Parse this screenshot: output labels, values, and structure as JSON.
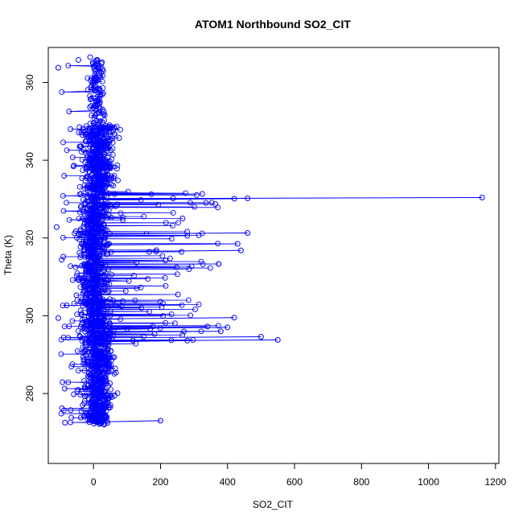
{
  "chart_data": {
    "type": "scatter",
    "title": "ATOM1 Northbound SO2_CIT",
    "xlabel": "SO2_CIT",
    "ylabel": "Theta (K)",
    "xlim": [
      -135,
      1210
    ],
    "ylim": [
      262,
      369
    ],
    "x_ticks": [
      0,
      200,
      400,
      600,
      800,
      1000,
      1200
    ],
    "y_ticks": [
      280,
      300,
      320,
      340,
      360
    ],
    "grid": false,
    "legend": "none",
    "series_color": "#0000ff",
    "marker": "open-circle",
    "connected": true,
    "highlight_points": [
      {
        "x": 1160,
        "y": 330.4
      },
      {
        "x": 460,
        "y": 330.2
      },
      {
        "x": 420,
        "y": 330.1
      },
      {
        "x": 550,
        "y": 293.8
      },
      {
        "x": 500,
        "y": 294.6
      },
      {
        "x": 460,
        "y": 321.3
      },
      {
        "x": 440,
        "y": 316.8
      },
      {
        "x": 430,
        "y": 318.5
      },
      {
        "x": 420,
        "y": 299.5
      },
      {
        "x": 400,
        "y": 297.0
      },
      {
        "x": 380,
        "y": 296.0
      },
      {
        "x": 340,
        "y": 297.2
      },
      {
        "x": 280,
        "y": 320.6
      },
      {
        "x": 280,
        "y": 293.6
      },
      {
        "x": 200,
        "y": 273.0
      },
      {
        "x": -105,
        "y": 363.8
      },
      {
        "x": -110,
        "y": 322.8
      },
      {
        "x": -105,
        "y": 299.4
      },
      {
        "x": -95,
        "y": 314.4
      },
      {
        "x": -85,
        "y": 272.5
      },
      {
        "x": -10,
        "y": 366.5
      },
      {
        "x": 25,
        "y": 365.2
      },
      {
        "x": -45,
        "y": 365.8
      },
      {
        "x": 10,
        "y": 352.0
      }
    ]
  }
}
